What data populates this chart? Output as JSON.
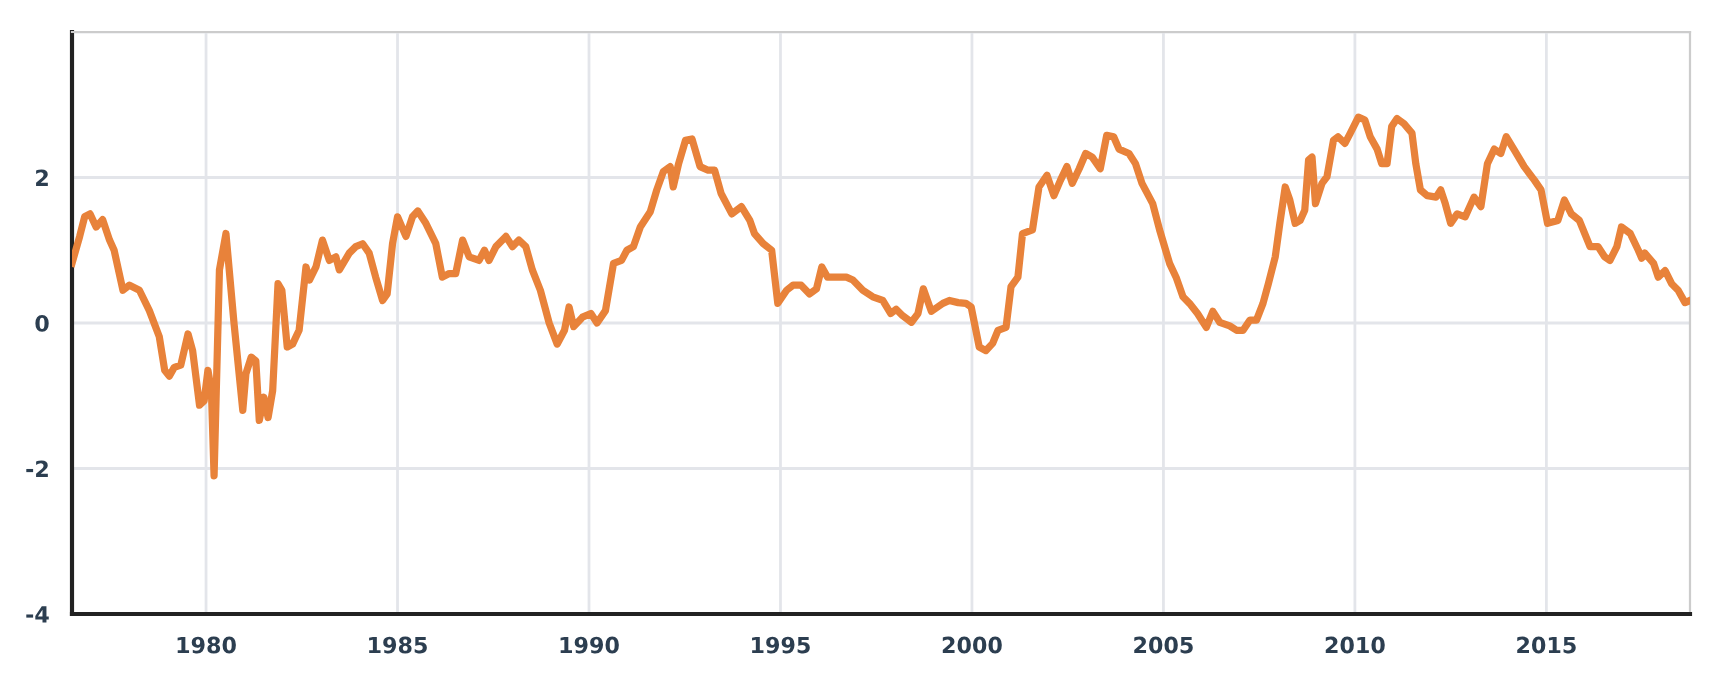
{
  "chart_data": {
    "type": "line",
    "xlim": [
      1976.5,
      2018.75
    ],
    "ylim": [
      -4,
      4
    ],
    "xticks": [
      1980,
      1985,
      1990,
      1995,
      2000,
      2005,
      2010,
      2015
    ],
    "yticks": [
      {
        "value": -4,
        "label": "-4"
      },
      {
        "value": -2,
        "label": "-2"
      },
      0,
      2,
      {
        "value": 4,
        "label": null
      }
    ],
    "grid": true,
    "marker": "none",
    "line_style": "solid",
    "series": [
      {
        "color": "#e8823a",
        "x": [
          1976.5,
          1976.7,
          1976.83,
          1976.97,
          1977.13,
          1977.3,
          1977.48,
          1977.6,
          1977.83,
          1978.0,
          1978.26,
          1978.52,
          1978.78,
          1978.92,
          1979.04,
          1979.17,
          1979.34,
          1979.53,
          1979.65,
          1979.83,
          1979.95,
          1980.05,
          1980.14,
          1980.21,
          1980.35,
          1980.52,
          1980.73,
          1980.96,
          1981.04,
          1981.18,
          1981.3,
          1981.39,
          1981.51,
          1981.62,
          1981.74,
          1981.88,
          1981.98,
          1982.12,
          1982.26,
          1982.43,
          1982.61,
          1982.7,
          1982.87,
          1983.04,
          1983.22,
          1983.39,
          1983.48,
          1983.74,
          1983.91,
          1984.09,
          1984.26,
          1984.43,
          1984.61,
          1984.73,
          1984.87,
          1985.0,
          1985.22,
          1985.39,
          1985.53,
          1985.74,
          1986.0,
          1986.17,
          1986.35,
          1986.52,
          1986.7,
          1986.87,
          1987.13,
          1987.27,
          1987.39,
          1987.57,
          1987.83,
          1988.0,
          1988.17,
          1988.35,
          1988.52,
          1988.73,
          1988.96,
          1989.17,
          1989.36,
          1989.48,
          1989.6,
          1989.83,
          1990.05,
          1990.21,
          1990.43,
          1990.64,
          1990.85,
          1990.99,
          1991.16,
          1991.34,
          1991.6,
          1991.77,
          1991.94,
          1992.12,
          1992.2,
          1992.34,
          1992.52,
          1992.69,
          1992.9,
          1993.11,
          1993.28,
          1993.45,
          1993.73,
          1993.98,
          1994.2,
          1994.32,
          1994.55,
          1994.77,
          1994.93,
          1995.16,
          1995.33,
          1995.54,
          1995.76,
          1995.94,
          1996.08,
          1996.23,
          1996.46,
          1996.72,
          1996.89,
          1997.15,
          1997.41,
          1997.67,
          1997.88,
          1998.02,
          1998.19,
          1998.42,
          1998.59,
          1998.73,
          1998.94,
          1999.24,
          1999.41,
          1999.64,
          1999.84,
          1999.98,
          2000.19,
          2000.36,
          2000.54,
          2000.68,
          2000.89,
          2001.02,
          2001.2,
          2001.32,
          2001.58,
          2001.75,
          2001.96,
          2002.14,
          2002.31,
          2002.48,
          2002.62,
          2002.8,
          2002.97,
          2003.14,
          2003.35,
          2003.52,
          2003.7,
          2003.84,
          2004.1,
          2004.27,
          2004.44,
          2004.72,
          2004.9,
          2005.16,
          2005.33,
          2005.51,
          2005.68,
          2005.89,
          2006.12,
          2006.29,
          2006.47,
          2006.73,
          2006.91,
          2007.08,
          2007.26,
          2007.43,
          2007.6,
          2007.74,
          2007.92,
          2008.04,
          2008.18,
          2008.3,
          2008.44,
          2008.57,
          2008.69,
          2008.79,
          2008.88,
          2008.97,
          2009.14,
          2009.27,
          2009.44,
          2009.56,
          2009.74,
          2009.88,
          2010.09,
          2010.26,
          2010.4,
          2010.58,
          2010.7,
          2010.84,
          2010.96,
          2011.1,
          2011.28,
          2011.49,
          2011.59,
          2011.71,
          2011.89,
          2012.12,
          2012.24,
          2012.36,
          2012.5,
          2012.67,
          2012.88,
          2013.11,
          2013.29,
          2013.46,
          2013.64,
          2013.81,
          2013.95,
          2014.16,
          2014.42,
          2014.69,
          2014.86,
          2015.03,
          2015.3,
          2015.47,
          2015.65,
          2015.86,
          2016.14,
          2016.35,
          2016.52,
          2016.66,
          2016.84,
          2016.96,
          2017.19,
          2017.4,
          2017.49,
          2017.57,
          2017.8,
          2017.92,
          2018.1,
          2018.27,
          2018.44,
          2018.62,
          2018.75
        ],
        "values": [
          0.82,
          1.19,
          1.46,
          1.5,
          1.32,
          1.42,
          1.14,
          1.0,
          0.45,
          0.52,
          0.45,
          0.17,
          -0.19,
          -0.65,
          -0.73,
          -0.61,
          -0.58,
          -0.15,
          -0.38,
          -1.13,
          -1.07,
          -0.65,
          -0.93,
          -2.1,
          0.73,
          1.23,
          0.0,
          -1.2,
          -0.7,
          -0.47,
          -0.52,
          -1.34,
          -1.02,
          -1.3,
          -0.93,
          0.54,
          0.45,
          -0.33,
          -0.29,
          -0.1,
          0.77,
          0.59,
          0.77,
          1.14,
          0.86,
          0.91,
          0.73,
          0.96,
          1.05,
          1.09,
          0.96,
          0.63,
          0.31,
          0.4,
          1.09,
          1.46,
          1.19,
          1.46,
          1.54,
          1.37,
          1.09,
          0.63,
          0.68,
          0.68,
          1.14,
          0.91,
          0.86,
          1.0,
          0.86,
          1.05,
          1.19,
          1.05,
          1.14,
          1.05,
          0.73,
          0.45,
          0.0,
          -0.29,
          -0.1,
          0.22,
          -0.05,
          0.08,
          0.13,
          0.0,
          0.17,
          0.82,
          0.86,
          1.0,
          1.05,
          1.32,
          1.53,
          1.83,
          2.08,
          2.15,
          1.87,
          2.19,
          2.51,
          2.53,
          2.15,
          2.1,
          2.1,
          1.78,
          1.5,
          1.6,
          1.41,
          1.23,
          1.09,
          1.0,
          0.27,
          0.45,
          0.52,
          0.52,
          0.4,
          0.47,
          0.77,
          0.63,
          0.63,
          0.63,
          0.59,
          0.45,
          0.36,
          0.31,
          0.13,
          0.19,
          0.1,
          0.01,
          0.13,
          0.47,
          0.16,
          0.27,
          0.31,
          0.28,
          0.27,
          0.22,
          -0.33,
          -0.38,
          -0.28,
          -0.1,
          -0.06,
          0.5,
          0.63,
          1.23,
          1.28,
          1.87,
          2.03,
          1.75,
          1.96,
          2.15,
          1.92,
          2.12,
          2.33,
          2.28,
          2.12,
          2.58,
          2.56,
          2.39,
          2.33,
          2.19,
          1.92,
          1.64,
          1.28,
          0.82,
          0.63,
          0.36,
          0.27,
          0.13,
          -0.06,
          0.16,
          0.01,
          -0.04,
          -0.1,
          -0.1,
          0.04,
          0.04,
          0.27,
          0.54,
          0.91,
          1.37,
          1.87,
          1.69,
          1.37,
          1.41,
          1.55,
          2.24,
          2.28,
          1.64,
          1.92,
          2.01,
          2.51,
          2.56,
          2.47,
          2.61,
          2.83,
          2.79,
          2.56,
          2.39,
          2.19,
          2.19,
          2.7,
          2.81,
          2.74,
          2.61,
          2.19,
          1.83,
          1.75,
          1.73,
          1.83,
          1.64,
          1.37,
          1.5,
          1.46,
          1.73,
          1.6,
          2.19,
          2.39,
          2.33,
          2.56,
          2.38,
          2.15,
          1.96,
          1.83,
          1.37,
          1.41,
          1.69,
          1.5,
          1.41,
          1.05,
          1.05,
          0.91,
          0.86,
          1.05,
          1.32,
          1.23,
          1.0,
          0.89,
          0.96,
          0.82,
          0.63,
          0.72,
          0.54,
          0.45,
          0.28,
          0.31
        ]
      }
    ]
  }
}
